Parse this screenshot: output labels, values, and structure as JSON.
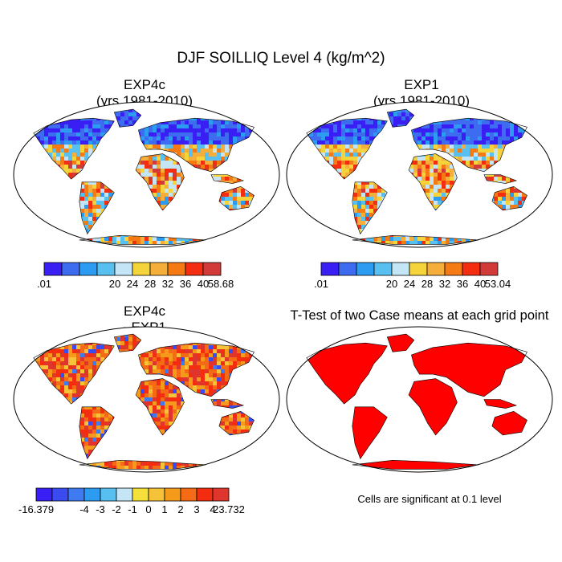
{
  "figure": {
    "title": "DJF SOILLIQ Level 4 (kg/m^2)"
  },
  "panels": [
    {
      "id": "exp4c",
      "title_line1": "EXP4c",
      "title_line2": "(yrs 1981-2010)"
    },
    {
      "id": "exp1",
      "title_line1": "EXP1",
      "title_line2": "(yrs 1981-2010)"
    },
    {
      "id": "diff",
      "title_line1": "EXP4c",
      "title_line2": "- EXP1"
    },
    {
      "id": "ttest",
      "title_line1": "T-Test of two Case means at each grid point",
      "title_line2": ""
    }
  ],
  "colorbars": {
    "exp4c": {
      "colors": [
        "#3a1ff5",
        "#3e6cf0",
        "#2c9cf2",
        "#58c0f0",
        "#c4e5f6",
        "#f5d33a",
        "#f5ae3a",
        "#f57a14",
        "#f52d10",
        "#d23a3a"
      ],
      "labels": [
        ".01",
        "20",
        "24",
        "28",
        "32",
        "36",
        "40",
        "58.68"
      ]
    },
    "exp1": {
      "colors": [
        "#3a1ff5",
        "#3e6cf0",
        "#2c9cf2",
        "#58c0f0",
        "#c4e5f6",
        "#f5d33a",
        "#f5ae3a",
        "#f57a14",
        "#f52d10",
        "#d23a3a"
      ],
      "labels": [
        ".01",
        "20",
        "24",
        "28",
        "32",
        "36",
        "40",
        "53.04"
      ]
    },
    "diff": {
      "colors": [
        "#3a1ff5",
        "#3a4cf0",
        "#3e7af0",
        "#2c9cf2",
        "#58c0f0",
        "#c4e5f6",
        "#f5e03a",
        "#f5c23a",
        "#f59a1a",
        "#f56a14",
        "#f52d10",
        "#e0352d"
      ],
      "labels": [
        "-16.379",
        "-4",
        "-3",
        "-2",
        "-1",
        "0",
        "1",
        "2",
        "3",
        "4",
        "23.732"
      ]
    }
  },
  "note": "Cells are significant at 0.1 level",
  "map_colors": {
    "ocean": "#ffffff",
    "coast": "#000000",
    "ttest_fill": "#ff0000"
  }
}
